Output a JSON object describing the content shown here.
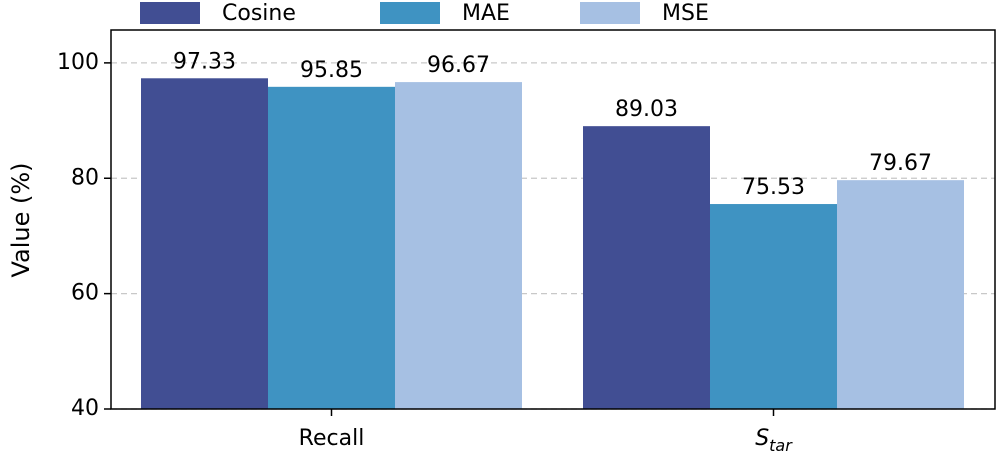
{
  "chart_data": {
    "type": "bar",
    "ylabel": "Value (%)",
    "categories": [
      "Recall",
      "S_tar"
    ],
    "series": [
      {
        "name": "Cosine",
        "color": "#414e93",
        "values": [
          97.33,
          89.03
        ]
      },
      {
        "name": "MAE",
        "color": "#3f93c2",
        "values": [
          95.85,
          75.53
        ]
      },
      {
        "name": "MSE",
        "color": "#a6c0e3",
        "values": [
          96.67,
          79.67
        ]
      }
    ],
    "ylim": [
      40,
      105.7
    ],
    "yticks": [
      40,
      60,
      80,
      100
    ],
    "grid": true,
    "legend": "top"
  }
}
